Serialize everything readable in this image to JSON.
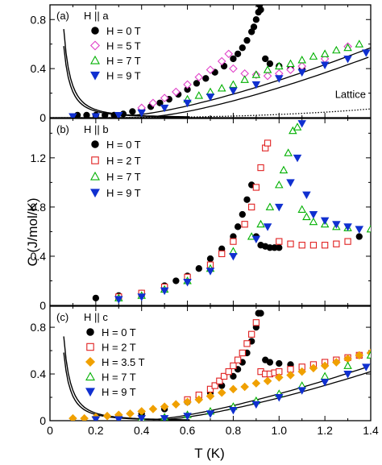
{
  "chart_data": {
    "type": "scatter",
    "xlabel": "T (K)",
    "ylabel": "C (J/mol/K)",
    "xlim": [
      0,
      1.4
    ],
    "x_ticks": [
      "0",
      "0.2",
      "0.4",
      "0.6",
      "0.8",
      "1.0",
      "1.2",
      "1.4"
    ],
    "panels": [
      {
        "label": "(a)",
        "field_label": "H || a",
        "ylim": [
          0,
          0.92
        ],
        "y_ticks": [
          "0",
          "0.4",
          "0.8"
        ],
        "annotation": "Lattice",
        "series": [
          {
            "name": "H = 0 T",
            "marker": "circle",
            "color": "#000000",
            "filled": true,
            "x": [
              0.12,
              0.16,
              0.2,
              0.24,
              0.28,
              0.32,
              0.36,
              0.4,
              0.44,
              0.48,
              0.52,
              0.56,
              0.6,
              0.64,
              0.68,
              0.72,
              0.76,
              0.8,
              0.82,
              0.84,
              0.86,
              0.88,
              0.89,
              0.9,
              0.91,
              0.915,
              0.92,
              0.94,
              0.96,
              1.0,
              1.05,
              1.1
            ],
            "y": [
              0.02,
              0.02,
              0.02,
              0.02,
              0.02,
              0.03,
              0.05,
              0.07,
              0.09,
              0.12,
              0.15,
              0.19,
              0.23,
              0.28,
              0.32,
              0.37,
              0.42,
              0.48,
              0.52,
              0.57,
              0.63,
              0.7,
              0.74,
              0.8,
              0.86,
              0.92,
              0.88,
              0.48,
              0.44,
              0.42,
              0.4,
              0.4
            ]
          },
          {
            "name": "H = 5 T",
            "marker": "diamond",
            "color": "#e040c8",
            "filled": false,
            "x": [
              0.4,
              0.45,
              0.5,
              0.55,
              0.6,
              0.65,
              0.7,
              0.75,
              0.78,
              0.8,
              0.85,
              0.9,
              0.95,
              1.0,
              1.05,
              1.1,
              1.2,
              1.3
            ],
            "y": [
              0.08,
              0.12,
              0.16,
              0.21,
              0.27,
              0.33,
              0.39,
              0.46,
              0.52,
              0.4,
              0.36,
              0.35,
              0.34,
              0.36,
              0.39,
              0.42,
              0.48,
              0.58
            ]
          },
          {
            "name": "H = 7 T",
            "marker": "triangle-up",
            "color": "#00b000",
            "filled": false,
            "x": [
              0.6,
              0.65,
              0.7,
              0.75,
              0.8,
              0.85,
              0.9,
              0.95,
              1.0,
              1.05,
              1.1,
              1.15,
              1.2,
              1.25,
              1.3,
              1.35
            ],
            "y": [
              0.15,
              0.18,
              0.21,
              0.24,
              0.27,
              0.31,
              0.35,
              0.39,
              0.42,
              0.44,
              0.47,
              0.5,
              0.52,
              0.55,
              0.57,
              0.6
            ]
          },
          {
            "name": "H = 9 T",
            "marker": "triangle-down",
            "color": "#1030d0",
            "filled": true,
            "x": [
              0.1,
              0.2,
              0.3,
              0.4,
              0.5,
              0.6,
              0.7,
              0.8,
              0.9,
              1.0,
              1.1,
              1.2,
              1.3,
              1.38
            ],
            "y": [
              0.01,
              0.01,
              0.02,
              0.04,
              0.08,
              0.12,
              0.17,
              0.22,
              0.27,
              0.32,
              0.37,
              0.43,
              0.48,
              0.53
            ]
          }
        ]
      },
      {
        "label": "(b)",
        "field_label": "H || b",
        "ylim": [
          0,
          1.52
        ],
        "y_ticks": [
          "0",
          "0.4",
          "0.8",
          "1.2"
        ],
        "series": [
          {
            "name": "H = 0 T",
            "marker": "circle",
            "color": "#000000",
            "filled": true,
            "x": [
              0.2,
              0.3,
              0.4,
              0.5,
              0.55,
              0.6,
              0.65,
              0.7,
              0.75,
              0.8,
              0.82,
              0.84,
              0.86,
              0.88,
              0.9,
              0.92,
              0.94,
              0.96,
              0.98,
              1.0,
              1.35
            ],
            "y": [
              0.06,
              0.08,
              0.1,
              0.16,
              0.2,
              0.24,
              0.3,
              0.38,
              0.46,
              0.56,
              0.64,
              0.74,
              0.86,
              0.98,
              0.56,
              0.49,
              0.48,
              0.47,
              0.47,
              0.47,
              0.56
            ]
          },
          {
            "name": "H = 2 T",
            "marker": "square",
            "color": "#e02020",
            "filled": false,
            "x": [
              0.3,
              0.4,
              0.5,
              0.6,
              0.7,
              0.75,
              0.8,
              0.85,
              0.88,
              0.9,
              0.92,
              0.94,
              0.95,
              1.0,
              1.05,
              1.1,
              1.15,
              1.2,
              1.25,
              1.3
            ],
            "y": [
              0.07,
              0.1,
              0.15,
              0.23,
              0.33,
              0.42,
              0.52,
              0.66,
              0.8,
              0.96,
              1.12,
              1.28,
              1.32,
              0.52,
              0.5,
              0.49,
              0.49,
              0.49,
              0.5,
              0.52
            ]
          },
          {
            "name": "H = 7 T",
            "marker": "triangle-up",
            "color": "#00b000",
            "filled": false,
            "x": [
              0.3,
              0.4,
              0.5,
              0.6,
              0.7,
              0.8,
              0.88,
              0.92,
              0.96,
              1.0,
              1.02,
              1.04,
              1.06,
              1.08,
              1.1,
              1.12,
              1.15,
              1.2,
              1.25,
              1.3,
              1.4
            ],
            "y": [
              0.06,
              0.08,
              0.13,
              0.2,
              0.3,
              0.44,
              0.56,
              0.66,
              0.8,
              0.98,
              1.1,
              1.24,
              1.42,
              1.45,
              0.78,
              0.72,
              0.68,
              0.66,
              0.64,
              0.63,
              0.62
            ]
          },
          {
            "name": "H = 9 T",
            "marker": "triangle-down",
            "color": "#1030d0",
            "filled": true,
            "x": [
              0.3,
              0.4,
              0.5,
              0.6,
              0.7,
              0.8,
              0.9,
              0.95,
              1.0,
              1.05,
              1.08,
              1.1,
              1.12,
              1.15,
              1.2,
              1.25,
              1.3,
              1.35
            ],
            "y": [
              0.05,
              0.07,
              0.12,
              0.19,
              0.28,
              0.4,
              0.54,
              0.64,
              0.8,
              1.0,
              1.2,
              1.48,
              0.9,
              0.74,
              0.69,
              0.66,
              0.64,
              0.62
            ]
          }
        ]
      },
      {
        "label": "(c)",
        "field_label": "H || c",
        "ylim": [
          0,
          0.98
        ],
        "y_ticks": [
          "0",
          "0.4",
          "0.8"
        ],
        "series": [
          {
            "name": "H = 0 T",
            "marker": "circle",
            "color": "#000000",
            "filled": true,
            "x": [
              0.3,
              0.4,
              0.5,
              0.6,
              0.65,
              0.7,
              0.75,
              0.8,
              0.82,
              0.84,
              0.86,
              0.88,
              0.9,
              0.91,
              0.92,
              0.94,
              0.96,
              1.0,
              1.05
            ],
            "y": [
              0.04,
              0.06,
              0.1,
              0.16,
              0.2,
              0.24,
              0.3,
              0.38,
              0.44,
              0.5,
              0.58,
              0.68,
              0.8,
              0.92,
              0.92,
              0.52,
              0.5,
              0.49,
              0.48
            ]
          },
          {
            "name": "H = 2 T",
            "marker": "square",
            "color": "#e02020",
            "filled": false,
            "x": [
              0.6,
              0.65,
              0.7,
              0.72,
              0.74,
              0.76,
              0.78,
              0.8,
              0.82,
              0.84,
              0.86,
              0.88,
              0.9,
              0.92,
              0.94,
              0.96,
              0.98,
              1.0,
              1.05,
              1.1,
              1.15,
              1.2,
              1.25,
              1.3,
              1.35
            ],
            "y": [
              0.18,
              0.22,
              0.27,
              0.3,
              0.34,
              0.38,
              0.42,
              0.47,
              0.52,
              0.58,
              0.66,
              0.74,
              0.84,
              0.42,
              0.4,
              0.4,
              0.41,
              0.42,
              0.44,
              0.46,
              0.48,
              0.5,
              0.52,
              0.54,
              0.56
            ]
          },
          {
            "name": "H = 3.5 T",
            "marker": "diamond",
            "color": "#f0a000",
            "filled": true,
            "x": [
              0.1,
              0.15,
              0.2,
              0.25,
              0.3,
              0.35,
              0.4,
              0.45,
              0.5,
              0.55,
              0.6,
              0.65,
              0.7,
              0.75,
              0.8,
              0.85,
              0.9,
              0.95,
              1.0,
              1.05,
              1.1,
              1.15,
              1.2,
              1.25,
              1.3,
              1.35,
              1.4
            ],
            "y": [
              0.02,
              0.02,
              0.03,
              0.04,
              0.05,
              0.06,
              0.08,
              0.1,
              0.12,
              0.14,
              0.16,
              0.18,
              0.21,
              0.24,
              0.27,
              0.29,
              0.32,
              0.34,
              0.37,
              0.39,
              0.42,
              0.45,
              0.47,
              0.5,
              0.53,
              0.56,
              0.58
            ]
          },
          {
            "name": "H = 7 T",
            "marker": "triangle-up",
            "color": "#00b000",
            "filled": false,
            "x": [
              0.4,
              0.5,
              0.6,
              0.7,
              0.8,
              0.9,
              1.0,
              1.1,
              1.2,
              1.3,
              1.4
            ],
            "y": [
              0.02,
              0.03,
              0.05,
              0.08,
              0.12,
              0.17,
              0.23,
              0.3,
              0.38,
              0.47,
              0.56
            ]
          },
          {
            "name": "H = 9 T",
            "marker": "triangle-down",
            "color": "#1030d0",
            "filled": true,
            "x": [
              0.2,
              0.3,
              0.4,
              0.5,
              0.6,
              0.7,
              0.8,
              0.9,
              1.0,
              1.1,
              1.2,
              1.3,
              1.38
            ],
            "y": [
              0.01,
              0.01,
              0.02,
              0.02,
              0.04,
              0.06,
              0.09,
              0.14,
              0.2,
              0.26,
              0.33,
              0.4,
              0.46
            ]
          }
        ]
      }
    ]
  }
}
